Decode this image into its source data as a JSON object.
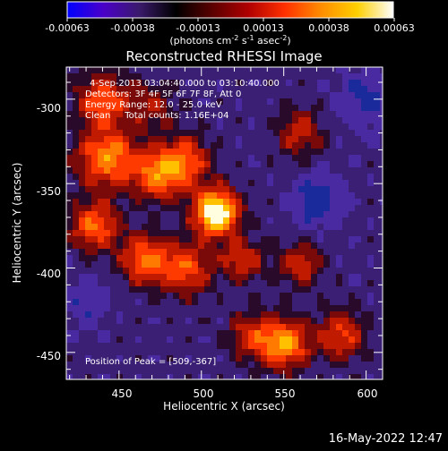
{
  "colorbar": {
    "ticks": [
      "-0.00063",
      "-0.00038",
      "-0.00013",
      "0.00013",
      "0.00038",
      "0.00063"
    ],
    "unit_prefix": "(photons cm",
    "unit_exp1": "-2",
    "unit_mid1": " s",
    "unit_exp2": "-1",
    "unit_mid2": " asec",
    "unit_exp3": "-2",
    "unit_suffix": ")",
    "colors": [
      "#0000ff",
      "#4a00c8",
      "#3a1a6a",
      "#000000",
      "#5a0000",
      "#b00000",
      "#ff3000",
      "#ff8c00",
      "#ffd000",
      "#ffffff"
    ]
  },
  "chart_data": {
    "type": "heatmap",
    "title": "Reconstructed RHESSI Image",
    "xlabel": "Heliocentric X (arcsec)",
    "ylabel": "Heliocentric Y (arcsec)",
    "xlim": [
      418,
      610
    ],
    "ylim": [
      -466,
      -281
    ],
    "x_ticks": [
      450,
      500,
      550,
      600
    ],
    "y_ticks": [
      -300,
      -350,
      -400,
      -450
    ],
    "annotations": [
      "4-Sep-2013 03:04:40.000 to 03:10:40.000",
      "Detectors: 3F 4F 5F 6F 7F 8F, Att 0",
      "Energy Range: 12.0 - 25.0 keV",
      "Clean     Total counts: 1.16E+04"
    ],
    "peak_label": "Position of Peak = [509,-367]",
    "peak": [
      509,
      -367
    ],
    "sources": [
      {
        "x": 509,
        "y": -367,
        "amp": 1.0,
        "sigma": 9
      },
      {
        "x": 490,
        "y": -337,
        "amp": 0.5,
        "sigma": 10
      },
      {
        "x": 473,
        "y": -345,
        "amp": 0.55,
        "sigma": 10
      },
      {
        "x": 443,
        "y": -335,
        "amp": 0.6,
        "sigma": 12
      },
      {
        "x": 440,
        "y": -300,
        "amp": 0.45,
        "sigma": 11
      },
      {
        "x": 435,
        "y": -375,
        "amp": 0.5,
        "sigma": 10
      },
      {
        "x": 465,
        "y": -395,
        "amp": 0.5,
        "sigma": 10
      },
      {
        "x": 490,
        "y": -400,
        "amp": 0.45,
        "sigma": 11
      },
      {
        "x": 525,
        "y": -395,
        "amp": 0.35,
        "sigma": 9
      },
      {
        "x": 560,
        "y": -398,
        "amp": 0.35,
        "sigma": 9
      },
      {
        "x": 550,
        "y": -445,
        "amp": 0.65,
        "sigma": 10
      },
      {
        "x": 585,
        "y": -440,
        "amp": 0.4,
        "sigma": 10
      },
      {
        "x": 530,
        "y": -440,
        "amp": 0.35,
        "sigma": 9
      },
      {
        "x": 560,
        "y": -320,
        "amp": 0.3,
        "sigma": 10
      },
      {
        "x": 470,
        "y": -305,
        "amp": 0.25,
        "sigma": 10
      },
      {
        "x": 570,
        "y": -360,
        "amp": -0.35,
        "sigma": 10
      },
      {
        "x": 600,
        "y": -300,
        "amp": -0.25,
        "sigma": 12
      },
      {
        "x": 430,
        "y": -420,
        "amp": -0.2,
        "sigma": 10
      }
    ]
  },
  "timestamp": "16-May-2022 12:47"
}
